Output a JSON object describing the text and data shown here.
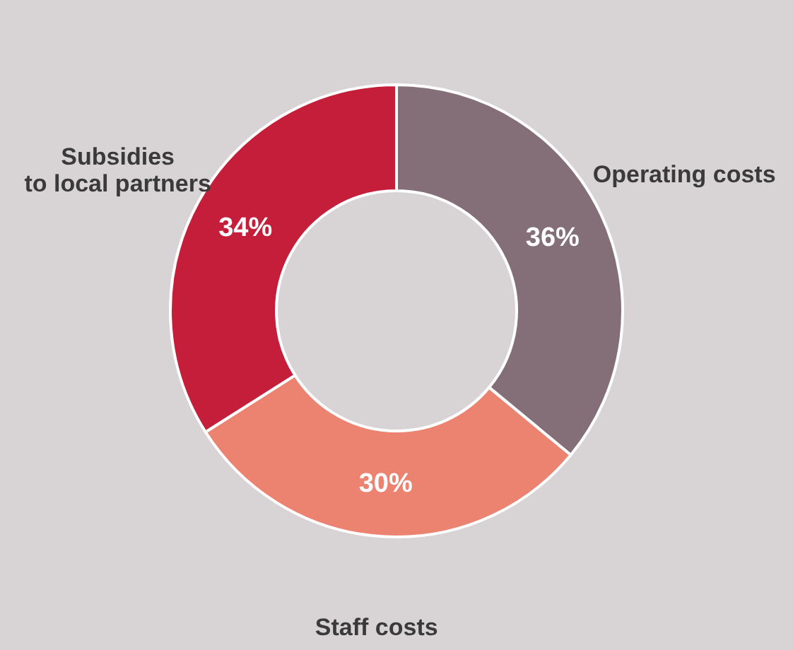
{
  "chart_data": {
    "type": "donut",
    "categories": [
      "Operating costs",
      "Staff costs",
      "Subsidies\nto local partners"
    ],
    "values": [
      36,
      30,
      34
    ],
    "colors": [
      "#846f78",
      "#ec8270",
      "#c41e3a"
    ],
    "value_labels": [
      "36%",
      "30%",
      "34%"
    ]
  }
}
